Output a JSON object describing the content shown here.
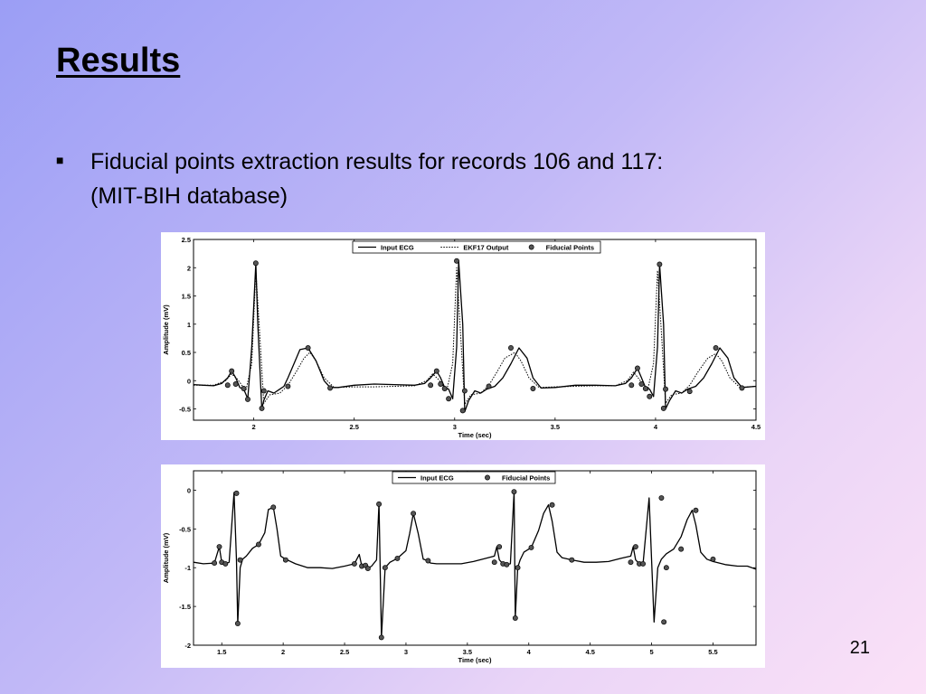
{
  "slide": {
    "title": "Results",
    "bullet_line1": "Fiducial points extraction results for records 106 and 117:",
    "bullet_line2": "(MIT-BIH database)",
    "page_number": "21",
    "bullet_icon": "square-bullet-icon"
  },
  "chart_data": [
    {
      "type": "line",
      "title": "",
      "xlabel": "Time (sec)",
      "ylabel": "Amplitude (mV)",
      "xlim": [
        1.7,
        4.5
      ],
      "ylim": [
        -0.7,
        2.5
      ],
      "xticks": [
        2,
        2.5,
        3,
        3.5,
        4,
        4.5
      ],
      "xtick_labels": [
        "2",
        "2.5",
        "3",
        "3.5",
        "4",
        "4.5"
      ],
      "yticks": [
        -0.5,
        0,
        0.5,
        1,
        1.5,
        2,
        2.5
      ],
      "ytick_labels": [
        "-0.5",
        "0",
        "0.5",
        "1",
        "1.5",
        "2",
        "2.5"
      ],
      "legend_position": "top-right",
      "grid": false,
      "series": [
        {
          "name": "Input ECG",
          "style": "solid",
          "color": "#000000",
          "x": [
            1.7,
            1.75,
            1.8,
            1.84,
            1.87,
            1.89,
            1.91,
            1.93,
            1.95,
            1.97,
            1.99,
            2.01,
            2.02,
            2.04,
            2.05,
            2.07,
            2.1,
            2.13,
            2.15,
            2.17,
            2.2,
            2.23,
            2.27,
            2.31,
            2.35,
            2.38,
            2.42,
            2.5,
            2.6,
            2.7,
            2.8,
            2.85,
            2.88,
            2.91,
            2.93,
            2.95,
            2.97,
            2.99,
            3.01,
            3.02,
            3.04,
            3.05,
            3.07,
            3.1,
            3.13,
            3.16,
            3.2,
            3.24,
            3.28,
            3.32,
            3.36,
            3.39,
            3.43,
            3.5,
            3.6,
            3.7,
            3.8,
            3.85,
            3.88,
            3.91,
            3.93,
            3.95,
            3.97,
            3.99,
            4.01,
            4.02,
            4.04,
            4.05,
            4.07,
            4.1,
            4.13,
            4.16,
            4.2,
            4.24,
            4.28,
            4.32,
            4.36,
            4.39,
            4.43,
            4.5
          ],
          "y": [
            -0.07,
            -0.08,
            -0.09,
            -0.05,
            0.05,
            0.17,
            0.05,
            -0.12,
            -0.15,
            -0.32,
            0.6,
            2.08,
            1.0,
            -0.5,
            -0.35,
            -0.18,
            -0.22,
            -0.15,
            -0.1,
            0.05,
            0.3,
            0.55,
            0.58,
            0.35,
            0.0,
            -0.12,
            -0.12,
            -0.08,
            -0.06,
            -0.07,
            -0.08,
            -0.05,
            0.05,
            0.17,
            0.05,
            -0.12,
            -0.15,
            -0.32,
            0.6,
            2.12,
            1.0,
            -0.55,
            -0.35,
            -0.18,
            -0.22,
            -0.15,
            -0.1,
            0.05,
            0.3,
            0.58,
            0.4,
            0.05,
            -0.13,
            -0.12,
            -0.08,
            -0.08,
            -0.09,
            -0.05,
            0.05,
            0.22,
            0.05,
            -0.12,
            -0.15,
            -0.28,
            0.6,
            2.06,
            1.0,
            -0.5,
            -0.35,
            -0.18,
            -0.22,
            -0.15,
            -0.1,
            0.05,
            0.3,
            0.58,
            0.4,
            0.05,
            -0.12,
            -0.1
          ]
        },
        {
          "name": "EKF17 Output",
          "style": "dotted",
          "color": "#000000",
          "x": [
            1.7,
            1.8,
            1.86,
            1.89,
            1.92,
            1.96,
            1.99,
            2.01,
            2.03,
            2.05,
            2.08,
            2.13,
            2.17,
            2.21,
            2.25,
            2.28,
            2.31,
            2.35,
            2.4,
            2.5,
            2.6,
            2.7,
            2.8,
            2.86,
            2.89,
            2.92,
            2.96,
            2.99,
            3.01,
            3.03,
            3.05,
            3.08,
            3.13,
            3.17,
            3.21,
            3.25,
            3.3,
            3.33,
            3.37,
            3.42,
            3.5,
            3.6,
            3.7,
            3.8,
            3.86,
            3.89,
            3.92,
            3.96,
            3.99,
            4.01,
            4.03,
            4.05,
            4.08,
            4.13,
            4.17,
            4.21,
            4.26,
            4.3,
            4.33,
            4.37,
            4.42,
            4.5
          ],
          "y": [
            -0.08,
            -0.08,
            0.0,
            0.12,
            0.02,
            -0.18,
            0.3,
            1.95,
            0.8,
            -0.4,
            -0.25,
            -0.22,
            -0.08,
            0.15,
            0.4,
            0.5,
            0.35,
            0.05,
            -0.12,
            -0.11,
            -0.11,
            -0.1,
            -0.09,
            0.0,
            0.12,
            0.02,
            -0.18,
            0.3,
            2.0,
            0.8,
            -0.42,
            -0.25,
            -0.22,
            -0.08,
            0.15,
            0.4,
            0.5,
            0.35,
            0.05,
            -0.12,
            -0.11,
            -0.1,
            -0.09,
            -0.09,
            0.0,
            0.15,
            0.02,
            -0.18,
            0.3,
            1.95,
            0.8,
            -0.4,
            -0.25,
            -0.22,
            -0.08,
            0.15,
            0.4,
            0.48,
            0.35,
            0.05,
            -0.12,
            -0.1
          ]
        },
        {
          "name": "Fiducial Points",
          "style": "markers",
          "color": "#555555",
          "x": [
            1.87,
            1.89,
            1.91,
            1.95,
            1.97,
            2.01,
            2.04,
            2.05,
            2.17,
            2.27,
            2.38,
            2.88,
            2.91,
            2.93,
            2.95,
            2.97,
            3.01,
            3.04,
            3.05,
            3.17,
            3.28,
            3.39,
            3.88,
            3.91,
            3.93,
            3.95,
            3.97,
            4.02,
            4.04,
            4.05,
            4.17,
            4.3,
            4.43
          ],
          "y": [
            -0.08,
            0.17,
            -0.06,
            -0.14,
            -0.33,
            2.08,
            -0.49,
            -0.18,
            -0.1,
            0.58,
            -0.13,
            -0.08,
            0.17,
            -0.06,
            -0.14,
            -0.32,
            2.12,
            -0.53,
            -0.18,
            -0.1,
            0.58,
            -0.14,
            -0.08,
            0.22,
            -0.06,
            -0.14,
            -0.28,
            2.06,
            -0.49,
            -0.15,
            -0.19,
            0.58,
            -0.13
          ]
        }
      ]
    },
    {
      "type": "line",
      "title": "",
      "xlabel": "Time (sec)",
      "ylabel": "Amplitude (mV)",
      "xlim": [
        1.27,
        5.85
      ],
      "ylim": [
        -2.0,
        0.25
      ],
      "xticks": [
        1.5,
        2,
        2.5,
        3,
        3.5,
        4,
        4.5,
        5,
        5.5
      ],
      "xtick_labels": [
        "1.5",
        "2",
        "2.5",
        "3",
        "3.5",
        "4",
        "4.5",
        "5",
        "5.5"
      ],
      "yticks": [
        -2,
        -1.5,
        -1,
        -0.5,
        0
      ],
      "ytick_labels": [
        "-2",
        "-1.5",
        "-1",
        "-0.5",
        "0"
      ],
      "legend_position": "top-center",
      "grid": false,
      "series": [
        {
          "name": "Input ECG",
          "style": "solid",
          "color": "#000000",
          "x": [
            1.27,
            1.35,
            1.44,
            1.48,
            1.5,
            1.53,
            1.56,
            1.6,
            1.62,
            1.63,
            1.65,
            1.67,
            1.7,
            1.75,
            1.8,
            1.85,
            1.88,
            1.92,
            1.95,
            1.98,
            2.02,
            2.1,
            2.2,
            2.3,
            2.4,
            2.5,
            2.58,
            2.62,
            2.64,
            2.67,
            2.69,
            2.72,
            2.76,
            2.78,
            2.8,
            2.83,
            2.87,
            2.93,
            3.0,
            3.03,
            3.06,
            3.1,
            3.14,
            3.18,
            3.2,
            3.25,
            3.35,
            3.45,
            3.55,
            3.65,
            3.72,
            3.74,
            3.76,
            3.79,
            3.82,
            3.85,
            3.88,
            3.89,
            3.91,
            3.93,
            3.96,
            4.02,
            4.08,
            4.12,
            4.16,
            4.19,
            4.23,
            4.27,
            4.35,
            4.45,
            4.55,
            4.65,
            4.75,
            4.83,
            4.85,
            4.87,
            4.9,
            4.93,
            4.98,
            5.02,
            5.05,
            5.08,
            5.12,
            5.18,
            5.24,
            5.29,
            5.33,
            5.36,
            5.4,
            5.45,
            5.5,
            5.6,
            5.7,
            5.78,
            5.85
          ],
          "y": [
            -0.93,
            -0.95,
            -0.94,
            -0.73,
            -0.93,
            -0.95,
            -0.93,
            -0.03,
            -0.9,
            -1.72,
            -1.0,
            -0.89,
            -0.85,
            -0.75,
            -0.7,
            -0.55,
            -0.25,
            -0.22,
            -0.5,
            -0.85,
            -0.89,
            -0.95,
            -1.0,
            -1.0,
            -1.01,
            -0.98,
            -0.95,
            -0.83,
            -0.98,
            -0.97,
            -1.01,
            -0.98,
            -0.9,
            -0.17,
            -1.9,
            -1.0,
            -0.93,
            -0.88,
            -0.78,
            -0.56,
            -0.3,
            -0.56,
            -0.89,
            -0.91,
            -0.94,
            -0.95,
            -0.95,
            -0.95,
            -0.92,
            -0.88,
            -0.85,
            -0.73,
            -0.9,
            -0.95,
            -0.96,
            -0.95,
            -0.02,
            -1.65,
            -1.0,
            -0.9,
            -0.8,
            -0.74,
            -0.52,
            -0.3,
            -0.19,
            -0.4,
            -0.8,
            -0.87,
            -0.9,
            -0.93,
            -0.93,
            -0.92,
            -0.88,
            -0.85,
            -0.73,
            -0.9,
            -0.95,
            -0.95,
            -0.1,
            -1.7,
            -1.0,
            -0.89,
            -0.82,
            -0.76,
            -0.6,
            -0.38,
            -0.26,
            -0.45,
            -0.8,
            -0.89,
            -0.92,
            -0.96,
            -0.98,
            -0.98,
            -1.02
          ]
        },
        {
          "name": "Fiducial Points",
          "style": "markers",
          "color": "#555555",
          "x": [
            1.44,
            1.48,
            1.5,
            1.53,
            1.62,
            1.63,
            1.65,
            1.8,
            1.92,
            2.02,
            2.58,
            2.64,
            2.67,
            2.69,
            2.78,
            2.8,
            2.83,
            2.93,
            3.06,
            3.18,
            3.72,
            3.76,
            3.79,
            3.82,
            3.88,
            3.89,
            3.91,
            4.02,
            4.19,
            4.35,
            4.83,
            4.87,
            4.9,
            4.93,
            5.08,
            5.1,
            5.12,
            5.24,
            5.36,
            5.5
          ],
          "y": [
            -0.94,
            -0.73,
            -0.93,
            -0.95,
            -0.04,
            -1.72,
            -0.9,
            -0.7,
            -0.22,
            -0.9,
            -0.95,
            -0.98,
            -0.97,
            -1.01,
            -0.18,
            -1.9,
            -1.0,
            -0.88,
            -0.3,
            -0.91,
            -0.93,
            -0.73,
            -0.95,
            -0.96,
            -0.02,
            -1.65,
            -1.0,
            -0.74,
            -0.19,
            -0.9,
            -0.93,
            -0.73,
            -0.95,
            -0.95,
            -0.1,
            -1.7,
            -1.0,
            -0.76,
            -0.26,
            -0.89
          ]
        }
      ]
    }
  ]
}
